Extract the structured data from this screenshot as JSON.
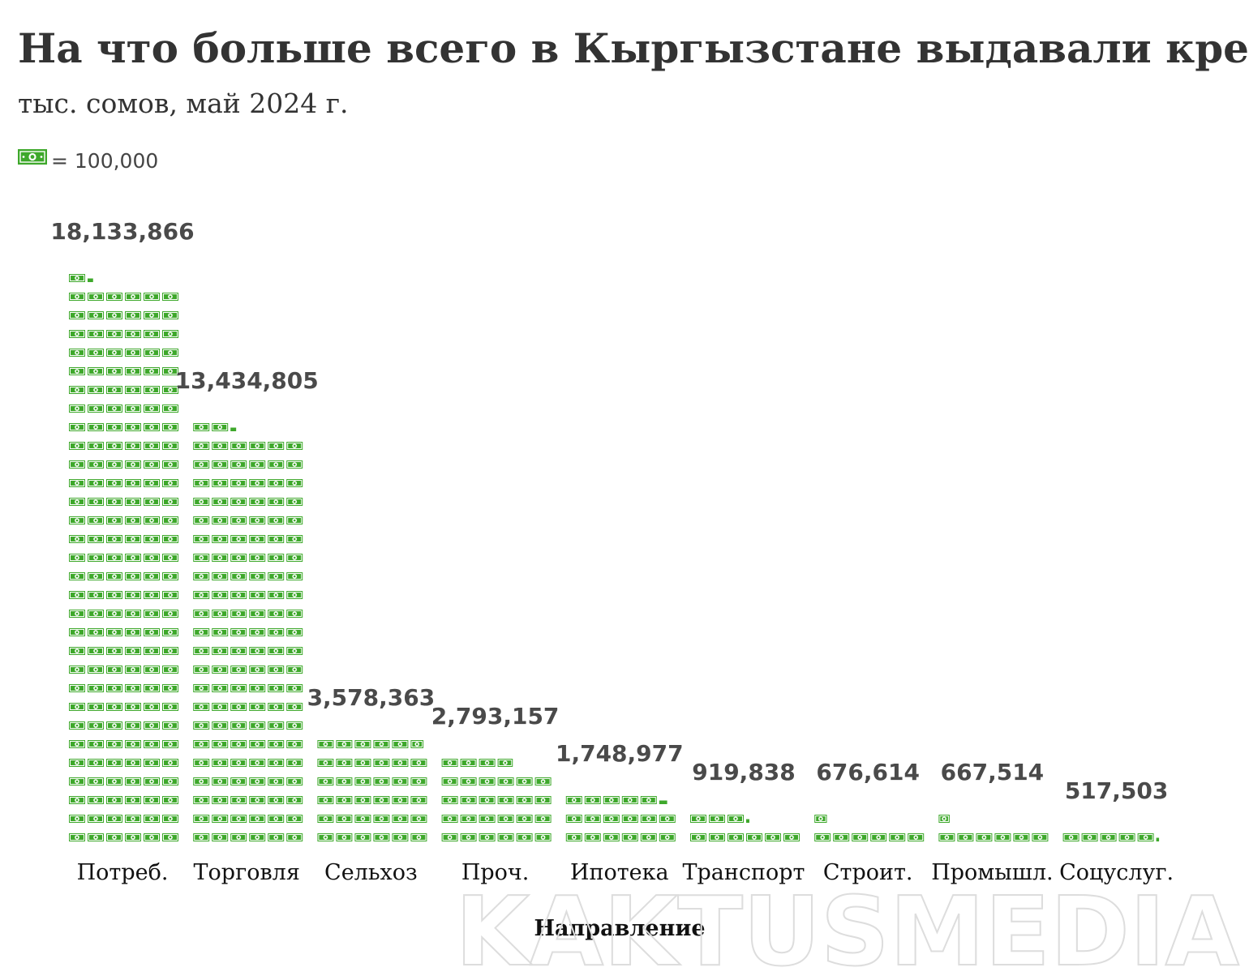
{
  "chart_data": {
    "type": "bar",
    "style": "pictograph",
    "title": "На что больше всего в Кыргызстане выдавали кредиты?",
    "subtitle": "тыс. сомов, май 2024 г.",
    "unit_legend": {
      "icon": "banknote-icon",
      "text": "= 100,000",
      "unit_value": 100000
    },
    "xlabel": "Направление",
    "categories": [
      "Потреб.",
      "Торговля",
      "Сельхоз",
      "Проч.",
      "Ипотека",
      "Транспорт",
      "Строит.",
      "Промышл.",
      "Соцуслуг."
    ],
    "values": [
      18133866,
      13434805,
      3578363,
      2793157,
      1748977,
      919838,
      676614,
      667514,
      517503
    ],
    "value_labels": [
      "18,133,866",
      "13,434,805",
      "3,578,363",
      "2,793,157",
      "1,748,977",
      "919,838",
      "676,614",
      "667,514",
      "517,503"
    ],
    "icons_per_row": 6,
    "icon_color": "#3ea82b"
  },
  "watermark": "KAKTUSMEDIA"
}
